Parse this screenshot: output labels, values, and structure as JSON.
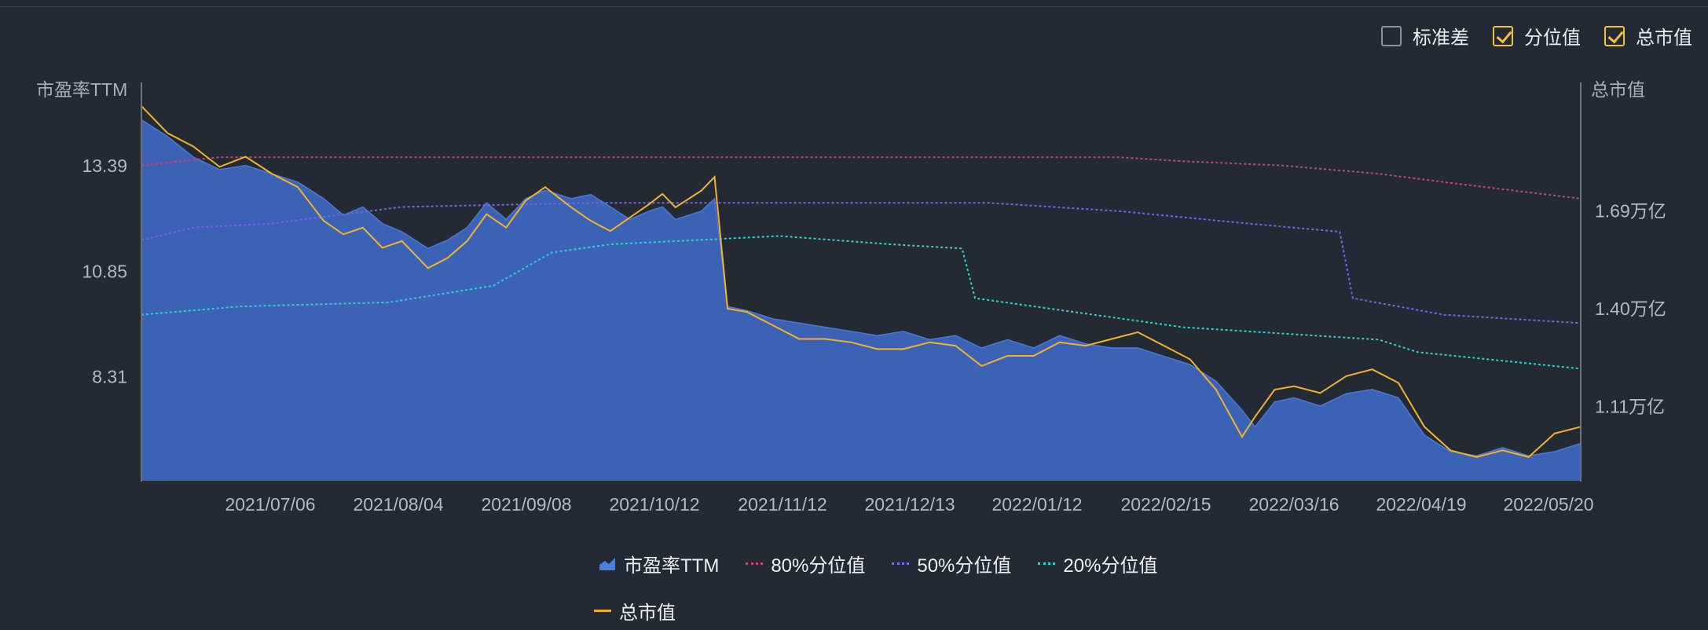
{
  "toggles": [
    {
      "label": "标准差",
      "checked": false
    },
    {
      "label": "分位值",
      "checked": true
    },
    {
      "label": "总市值",
      "checked": true
    }
  ],
  "legend": [
    {
      "label": "市盈率TTM",
      "icon": "area-chart-icon",
      "color": "#4e7fe0"
    },
    {
      "label": "80%分位值",
      "icon": "dotted-line-icon",
      "color": "#d4437a"
    },
    {
      "label": "50%分位值",
      "icon": "dotted-line-icon",
      "color": "#7a6cf0"
    },
    {
      "label": "20%分位值",
      "icon": "dotted-line-icon",
      "color": "#2fd6d0"
    },
    {
      "label": "总市值",
      "icon": "solid-line-icon",
      "color": "#f3b22a"
    }
  ],
  "chart_data": {
    "type": "line",
    "x_dates": [
      "2021/07/06",
      "2021/08/04",
      "2021/09/08",
      "2021/10/12",
      "2021/11/12",
      "2021/12/13",
      "2022/01/12",
      "2022/02/15",
      "2022/03/16",
      "2022/04/19",
      "2022/05/20"
    ],
    "left_axis": {
      "title": "市盈率TTM",
      "ticks": [
        "13.39",
        "10.85",
        "8.31"
      ],
      "tick_values": [
        13.39,
        10.85,
        8.31
      ],
      "range": [
        5.8,
        15.4
      ]
    },
    "right_axis": {
      "title": "总市值",
      "ticks": [
        "1.69万亿",
        "1.40万亿",
        "1.11万亿"
      ],
      "tick_values": [
        1.69,
        1.4,
        1.11
      ],
      "unit": "万亿",
      "range": [
        0.89,
        2.07
      ]
    },
    "series": [
      {
        "name": "市盈率TTM",
        "kind": "area",
        "axis": "left",
        "color": "#3c62b5",
        "points": [
          [
            0,
            14.5
          ],
          [
            4,
            14.1
          ],
          [
            8,
            13.6
          ],
          [
            12,
            13.3
          ],
          [
            16,
            13.4
          ],
          [
            20,
            13.2
          ],
          [
            24,
            13.0
          ],
          [
            28,
            12.6
          ],
          [
            31,
            12.2
          ],
          [
            34,
            12.4
          ],
          [
            37,
            12.0
          ],
          [
            40,
            11.8
          ],
          [
            44,
            11.4
          ],
          [
            47,
            11.6
          ],
          [
            50,
            11.9
          ],
          [
            53,
            12.5
          ],
          [
            56,
            12.1
          ],
          [
            59,
            12.6
          ],
          [
            62,
            12.8
          ],
          [
            66,
            12.6
          ],
          [
            69,
            12.7
          ],
          [
            72,
            12.4
          ],
          [
            75,
            12.1
          ],
          [
            78,
            12.3
          ],
          [
            80,
            12.4
          ],
          [
            82,
            12.1
          ],
          [
            86,
            12.3
          ],
          [
            88,
            12.6
          ],
          [
            90,
            10.0
          ],
          [
            93,
            9.9
          ],
          [
            97,
            9.7
          ],
          [
            101,
            9.6
          ],
          [
            105,
            9.5
          ],
          [
            109,
            9.4
          ],
          [
            113,
            9.3
          ],
          [
            117,
            9.4
          ],
          [
            121,
            9.2
          ],
          [
            125,
            9.3
          ],
          [
            129,
            9.0
          ],
          [
            133,
            9.2
          ],
          [
            137,
            9.0
          ],
          [
            141,
            9.3
          ],
          [
            145,
            9.1
          ],
          [
            149,
            9.0
          ],
          [
            153,
            9.0
          ],
          [
            157,
            8.8
          ],
          [
            161,
            8.6
          ],
          [
            165,
            8.2
          ],
          [
            169,
            7.5
          ],
          [
            171,
            7.1
          ],
          [
            174,
            7.7
          ],
          [
            177,
            7.8
          ],
          [
            181,
            7.6
          ],
          [
            185,
            7.9
          ],
          [
            189,
            8.0
          ],
          [
            193,
            7.8
          ],
          [
            197,
            6.9
          ],
          [
            201,
            6.5
          ],
          [
            205,
            6.4
          ],
          [
            209,
            6.6
          ],
          [
            213,
            6.4
          ],
          [
            217,
            6.5
          ],
          [
            221,
            6.7
          ]
        ]
      },
      {
        "name": "80%分位值",
        "kind": "dotted",
        "axis": "left",
        "color": "#c94478",
        "points": [
          [
            0,
            13.4
          ],
          [
            12,
            13.6
          ],
          [
            150,
            13.6
          ],
          [
            160,
            13.5
          ],
          [
            175,
            13.4
          ],
          [
            190,
            13.2
          ],
          [
            200,
            13.0
          ],
          [
            221,
            12.6
          ]
        ]
      },
      {
        "name": "50%分位值",
        "kind": "dotted",
        "axis": "left",
        "color": "#7366ec",
        "points": [
          [
            0,
            11.6
          ],
          [
            8,
            11.9
          ],
          [
            20,
            12.0
          ],
          [
            40,
            12.4
          ],
          [
            70,
            12.5
          ],
          [
            130,
            12.5
          ],
          [
            150,
            12.3
          ],
          [
            170,
            12.0
          ],
          [
            184,
            11.8
          ],
          [
            186,
            10.2
          ],
          [
            200,
            9.8
          ],
          [
            221,
            9.6
          ]
        ]
      },
      {
        "name": "20%分位值",
        "kind": "dotted",
        "axis": "left",
        "color": "#2fd2cc",
        "points": [
          [
            0,
            9.8
          ],
          [
            15,
            10.0
          ],
          [
            38,
            10.1
          ],
          [
            46,
            10.3
          ],
          [
            54,
            10.5
          ],
          [
            63,
            11.3
          ],
          [
            72,
            11.5
          ],
          [
            85,
            11.6
          ],
          [
            98,
            11.7
          ],
          [
            115,
            11.5
          ],
          [
            126,
            11.4
          ],
          [
            128,
            10.2
          ],
          [
            160,
            9.5
          ],
          [
            190,
            9.2
          ],
          [
            196,
            8.9
          ],
          [
            221,
            8.5
          ]
        ]
      },
      {
        "name": "总市值",
        "kind": "line",
        "axis": "right",
        "color": "#f3b22a",
        "points": [
          [
            0,
            2.0
          ],
          [
            4,
            1.92
          ],
          [
            8,
            1.88
          ],
          [
            12,
            1.82
          ],
          [
            16,
            1.85
          ],
          [
            20,
            1.8
          ],
          [
            24,
            1.76
          ],
          [
            28,
            1.66
          ],
          [
            31,
            1.62
          ],
          [
            34,
            1.64
          ],
          [
            37,
            1.58
          ],
          [
            40,
            1.6
          ],
          [
            44,
            1.52
          ],
          [
            47,
            1.55
          ],
          [
            50,
            1.6
          ],
          [
            53,
            1.68
          ],
          [
            56,
            1.64
          ],
          [
            59,
            1.72
          ],
          [
            62,
            1.76
          ],
          [
            66,
            1.7
          ],
          [
            69,
            1.66
          ],
          [
            72,
            1.63
          ],
          [
            75,
            1.67
          ],
          [
            78,
            1.71
          ],
          [
            80,
            1.74
          ],
          [
            82,
            1.7
          ],
          [
            86,
            1.75
          ],
          [
            88,
            1.79
          ],
          [
            90,
            1.4
          ],
          [
            93,
            1.39
          ],
          [
            97,
            1.35
          ],
          [
            101,
            1.31
          ],
          [
            105,
            1.31
          ],
          [
            109,
            1.3
          ],
          [
            113,
            1.28
          ],
          [
            117,
            1.28
          ],
          [
            121,
            1.3
          ],
          [
            125,
            1.29
          ],
          [
            129,
            1.23
          ],
          [
            133,
            1.26
          ],
          [
            137,
            1.26
          ],
          [
            141,
            1.3
          ],
          [
            145,
            1.29
          ],
          [
            149,
            1.31
          ],
          [
            153,
            1.33
          ],
          [
            157,
            1.29
          ],
          [
            161,
            1.25
          ],
          [
            165,
            1.16
          ],
          [
            169,
            1.02
          ],
          [
            171,
            1.08
          ],
          [
            174,
            1.16
          ],
          [
            177,
            1.17
          ],
          [
            181,
            1.15
          ],
          [
            185,
            1.2
          ],
          [
            189,
            1.22
          ],
          [
            193,
            1.18
          ],
          [
            197,
            1.05
          ],
          [
            201,
            0.98
          ],
          [
            205,
            0.96
          ],
          [
            209,
            0.98
          ],
          [
            213,
            0.96
          ],
          [
            217,
            1.03
          ],
          [
            221,
            1.05
          ]
        ]
      }
    ]
  }
}
